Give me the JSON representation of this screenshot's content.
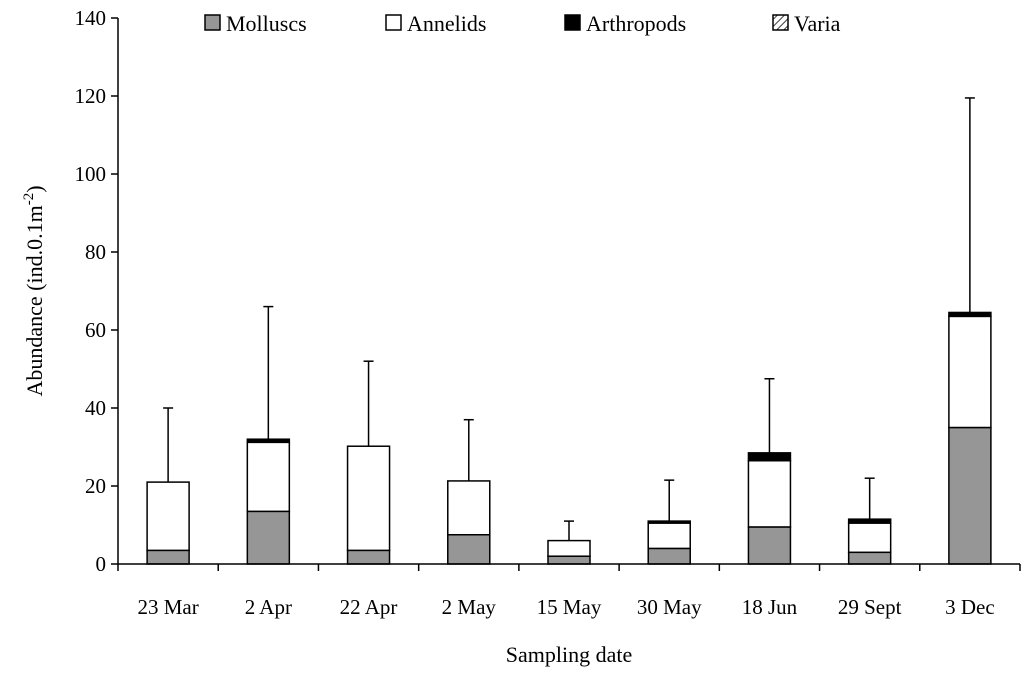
{
  "chart_data": {
    "type": "bar",
    "stacked": true,
    "title": "",
    "xlabel": "Sampling date",
    "ylabel_main": "Abundance (ind.0.1m",
    "ylabel_sup": "-2",
    "ylabel_tail": ")",
    "ylim": [
      0,
      140
    ],
    "yticks": [
      "0",
      "20",
      "40",
      "60",
      "80",
      "100",
      "120",
      "140"
    ],
    "categories": [
      "23 Mar",
      "2 Apr",
      "22 Apr",
      "2 May",
      "15 May",
      "30 May",
      "18 Jun",
      "29 Sept",
      "3 Dec"
    ],
    "series": [
      {
        "name": "Molluscs",
        "color": "#969696",
        "pattern": "solid",
        "values": [
          3.5,
          13.5,
          3.5,
          7.5,
          2,
          4,
          9.5,
          3,
          35
        ]
      },
      {
        "name": "Annelids",
        "color": "#ffffff",
        "pattern": "solid",
        "values": [
          17.5,
          17.7,
          26.7,
          13.8,
          4,
          6.5,
          17,
          7.5,
          28.5
        ]
      },
      {
        "name": "Arthropods",
        "color": "#000000",
        "pattern": "solid",
        "values": [
          0,
          0.8,
          0,
          0,
          0,
          0.5,
          2,
          1,
          1
        ]
      },
      {
        "name": "Varia",
        "color": "#ffffff",
        "pattern": "hatch",
        "values": [
          0,
          0,
          0,
          0,
          0,
          0,
          0,
          0,
          0
        ]
      }
    ],
    "error_upper": [
      40,
      66,
      52,
      37,
      11,
      21.5,
      47.5,
      22,
      119.5
    ],
    "grid": false,
    "legend_position": "top"
  }
}
